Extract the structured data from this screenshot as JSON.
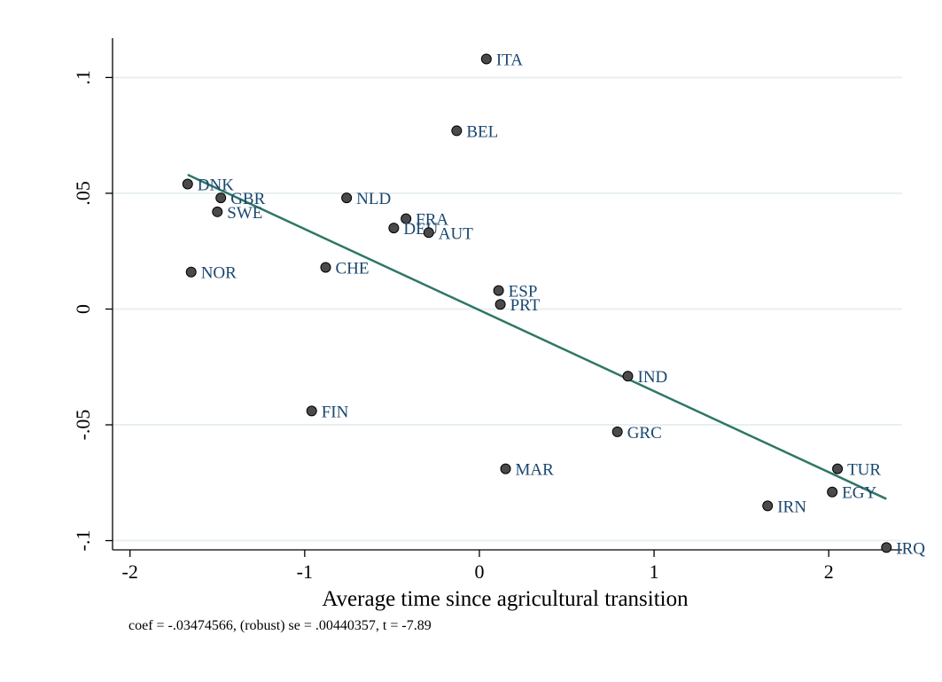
{
  "chart_data": {
    "type": "scatter",
    "title": "",
    "xlabel": "Average time since agricultural transition",
    "ylabel": "",
    "xlim": [
      -2.1,
      2.42
    ],
    "ylim": [
      -0.104,
      0.117
    ],
    "xticks": [
      -2,
      -1,
      0,
      1,
      2
    ],
    "xtick_labels": [
      "-2",
      "-1",
      "0",
      "1",
      "2"
    ],
    "yticks": [
      -0.1,
      -0.05,
      0,
      0.05,
      0.1
    ],
    "ytick_labels": [
      "-.1",
      "-.05",
      "0",
      ".05",
      ".1"
    ],
    "grid": true,
    "legend": "none",
    "marker_color": "#4a4a4a",
    "label_color": "#1a476f",
    "fit_color": "#2e7767",
    "gridline_color": "#e8efef",
    "points": [
      {
        "label": "ITA",
        "x": 0.04,
        "y": 0.108
      },
      {
        "label": "BEL",
        "x": -0.13,
        "y": 0.077
      },
      {
        "label": "DNK",
        "x": -1.67,
        "y": 0.054
      },
      {
        "label": "GBR",
        "x": -1.48,
        "y": 0.048
      },
      {
        "label": "SWE",
        "x": -1.5,
        "y": 0.042
      },
      {
        "label": "NLD",
        "x": -0.76,
        "y": 0.048
      },
      {
        "label": "FRA",
        "x": -0.42,
        "y": 0.039
      },
      {
        "label": "DEU",
        "x": -0.49,
        "y": 0.035
      },
      {
        "label": "AUT",
        "x": -0.29,
        "y": 0.033
      },
      {
        "label": "NOR",
        "x": -1.65,
        "y": 0.016
      },
      {
        "label": "CHE",
        "x": -0.88,
        "y": 0.018
      },
      {
        "label": "ESP",
        "x": 0.11,
        "y": 0.008
      },
      {
        "label": "PRT",
        "x": 0.12,
        "y": 0.002
      },
      {
        "label": "IND",
        "x": 0.85,
        "y": -0.029
      },
      {
        "label": "FIN",
        "x": -0.96,
        "y": -0.044
      },
      {
        "label": "GRC",
        "x": 0.79,
        "y": -0.053
      },
      {
        "label": "MAR",
        "x": 0.15,
        "y": -0.069
      },
      {
        "label": "TUR",
        "x": 2.05,
        "y": -0.069
      },
      {
        "label": "EGY",
        "x": 2.02,
        "y": -0.079
      },
      {
        "label": "IRN",
        "x": 1.65,
        "y": -0.085
      },
      {
        "label": "IRQ",
        "x": 2.33,
        "y": -0.103
      }
    ],
    "fit_line": {
      "x": [
        -1.67,
        2.33
      ],
      "y": [
        0.058,
        -0.082
      ]
    },
    "note": "coef = -.03474566, (robust) se = .00440357, t = -7.89"
  }
}
